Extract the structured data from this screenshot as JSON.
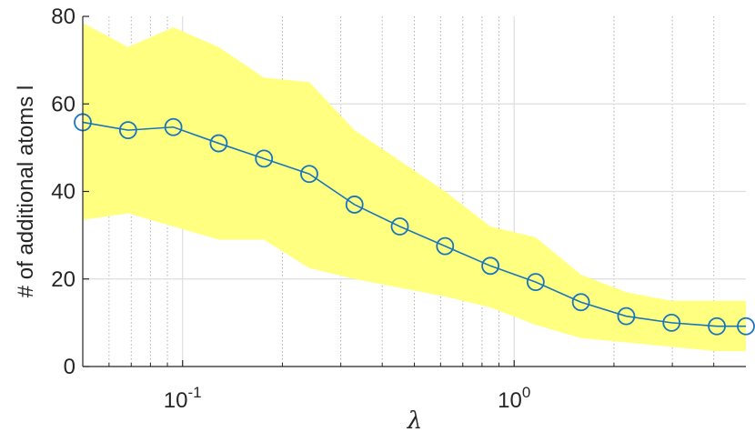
{
  "chart_data": {
    "type": "line",
    "title": "",
    "xlabel": "λ",
    "ylabel": "# of additional atoms l",
    "x_scale": "log",
    "xlim": [
      0.05,
      5
    ],
    "ylim": [
      0,
      80
    ],
    "grid": true,
    "x_ticks": [
      {
        "value": 0.1,
        "base": "10",
        "exp": "-1"
      },
      {
        "value": 1,
        "base": "10",
        "exp": "0"
      }
    ],
    "y_ticks": [
      0,
      20,
      40,
      60,
      80
    ],
    "y_tick_labels": [
      "0",
      "20",
      "40",
      "60",
      "80"
    ],
    "series": [
      {
        "type": "line",
        "marker": "circle",
        "color": "#1a75bc",
        "x": [
          0.05,
          0.0685,
          0.0938,
          0.1285,
          0.176,
          0.241,
          0.33,
          0.452,
          0.619,
          0.848,
          1.161,
          1.59,
          2.178,
          2.983,
          4.086,
          5.0
        ],
        "y": [
          55.8,
          54.0,
          54.7,
          51.0,
          47.5,
          44.0,
          37.0,
          32.0,
          27.5,
          23.0,
          19.3,
          14.7,
          11.5,
          10.0,
          9.2,
          9.2
        ]
      }
    ],
    "band": {
      "color": "#ffff80",
      "upper": [
        78.5,
        73.0,
        77.5,
        73.0,
        66.0,
        65.0,
        54.0,
        47.0,
        40.0,
        32.0,
        29.5,
        21.0,
        17.0,
        15.0,
        15.0,
        15.0
      ],
      "lower": [
        33.5,
        35.0,
        32.0,
        29.0,
        29.0,
        22.5,
        20.0,
        18.0,
        16.0,
        13.5,
        9.5,
        6.5,
        5.5,
        4.5,
        3.5,
        3.5
      ]
    }
  }
}
